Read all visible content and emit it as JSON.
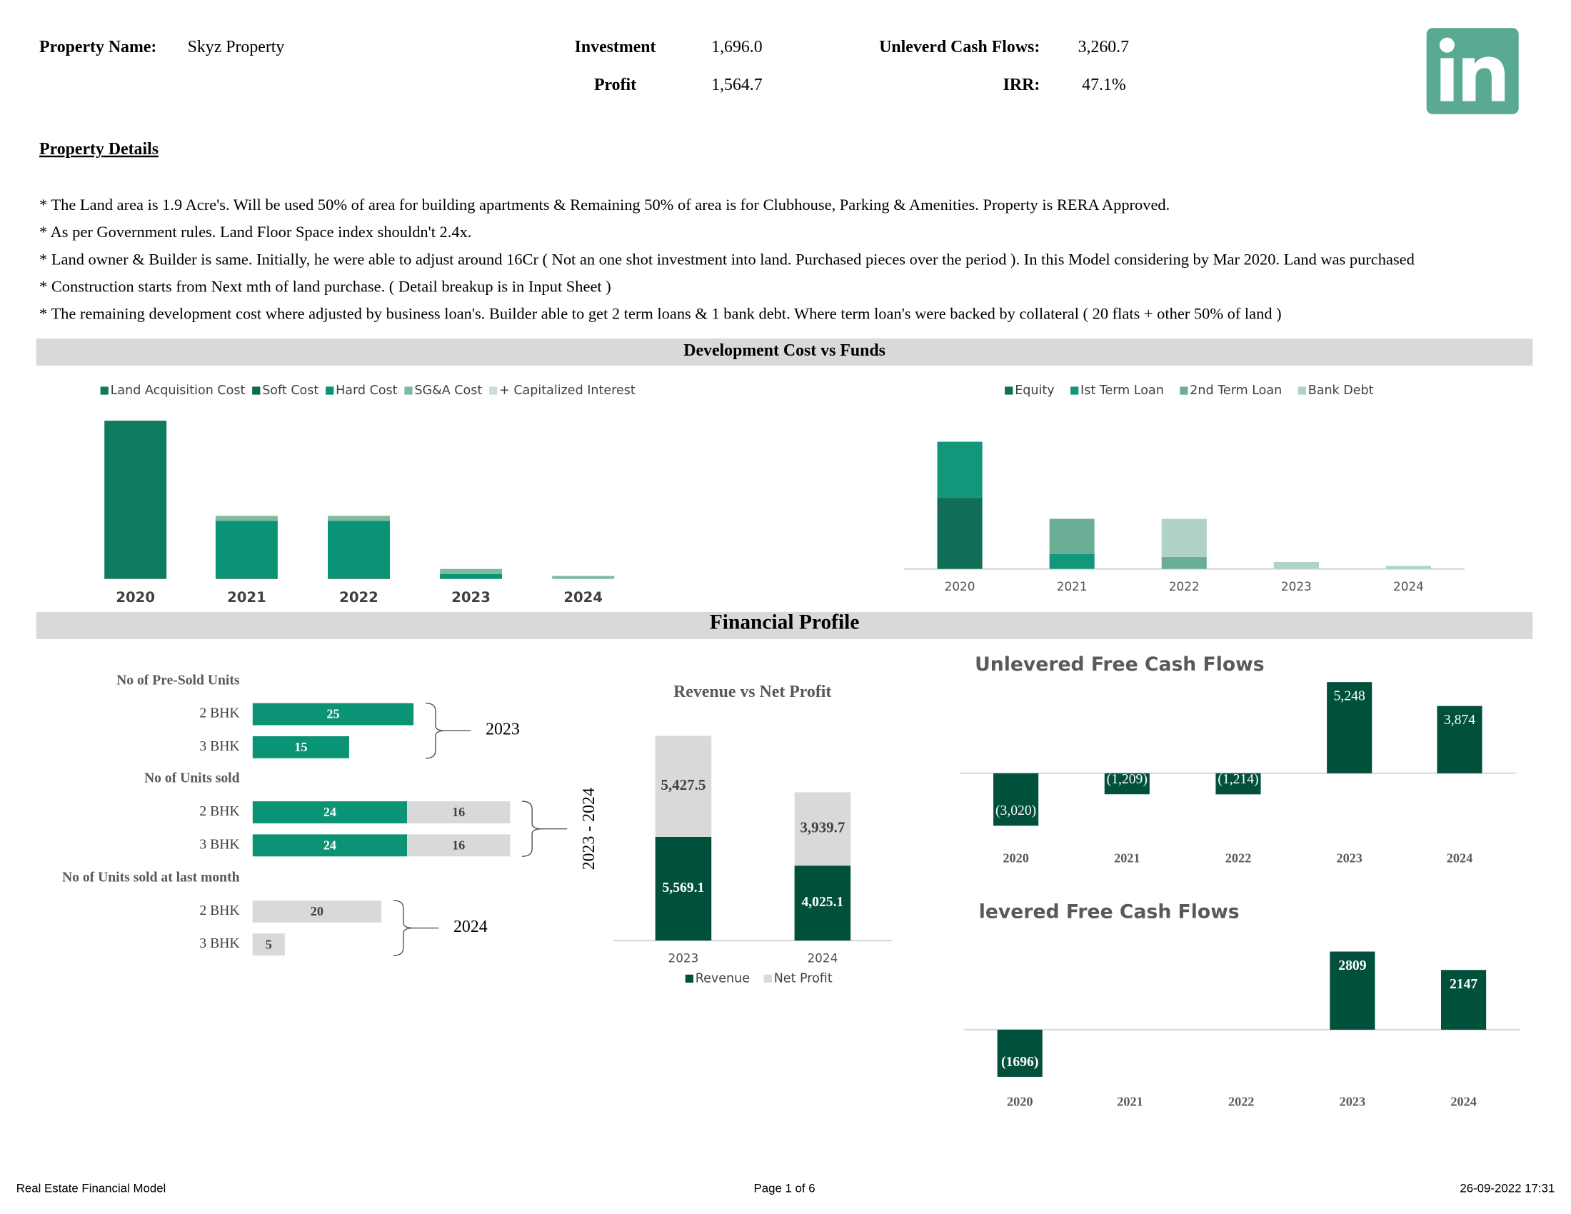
{
  "header": {
    "property_name_label": "Property Name:",
    "property_name": "Skyz Property",
    "investment_label": "Investment",
    "investment": "1,696.0",
    "profit_label": "Profit",
    "profit": "1,564.7",
    "cash_flows_label": "Unleverd Cash Flows:",
    "cash_flows": "3,260.7",
    "irr_label": "IRR:",
    "irr": "47.1%"
  },
  "details": {
    "title": "Property Details",
    "bullets": [
      "* The Land area is 1.9 Acre's. Will be used 50% of area for building apartments & Remaining 50% of area is for Clubhouse, Parking & Amenities. Property is RERA Approved.",
      "* As per Government rules. Land Floor Space index shouldn't 2.4x.",
      "* Land owner & Builder is same. Initially, he were able to adjust around 16Cr ( Not an one shot investment into land. Purchased pieces over the period ). In this Model considering by Mar 2020. Land was purchased",
      "* Construction starts from Next mth of land purchase. ( Detail breakup is in Input Sheet )",
      "* The remaining development cost where adjusted by business loan's. Builder able to get 2 term loans & 1 bank debt. Where term loan's were backed by collateral ( 20 flats + other 50% of land )"
    ]
  },
  "sections": [
    "Development Cost vs Funds",
    "Financial Profile"
  ],
  "chart_data": [
    {
      "type": "bar",
      "stacked": true,
      "legend": "top",
      "categories": [
        "2020",
        "2021",
        "2022",
        "2023",
        "2024"
      ],
      "ylim": [
        0,
        1600
      ],
      "series": [
        {
          "name": "Land Acquisition Cost",
          "color": "#0e7a5e",
          "values": [
            1580,
            0,
            0,
            0,
            0
          ]
        },
        {
          "name": "Soft Cost",
          "color": "#0b6b52",
          "values": [
            0,
            10,
            10,
            0,
            0
          ]
        },
        {
          "name": "Hard Cost",
          "color": "#0a9374",
          "values": [
            0,
            570,
            570,
            50,
            0
          ]
        },
        {
          "name": "SG&A Cost",
          "color": "#7fb9a2",
          "values": [
            0,
            50,
            50,
            50,
            30
          ]
        },
        {
          "name": "+ Capitalized Interest",
          "color": "#c9dfd6",
          "values": [
            0,
            0,
            0,
            0,
            0
          ]
        }
      ]
    },
    {
      "type": "bar",
      "stacked": true,
      "legend": "top",
      "categories": [
        "2020",
        "2021",
        "2022",
        "2023",
        "2024"
      ],
      "ylim": [
        0,
        1400
      ],
      "series": [
        {
          "name": "Equity",
          "color": "#0f6e55",
          "values": [
            710,
            0,
            0,
            0,
            0
          ]
        },
        {
          "name": "Ist Term Loan",
          "color": "#13977a",
          "values": [
            560,
            150,
            0,
            0,
            0
          ]
        },
        {
          "name": "2nd Term Loan",
          "color": "#6aaf95",
          "values": [
            0,
            350,
            120,
            0,
            0
          ]
        },
        {
          "name": "Bank Debt",
          "color": "#b0d3c6",
          "values": [
            0,
            0,
            380,
            70,
            30
          ]
        }
      ]
    },
    {
      "type": "hbar",
      "stacked": true,
      "xlim": [
        0,
        40
      ],
      "groups": [
        {
          "label": "No of Pre-Sold Units",
          "period": "2023",
          "colors": [
            "#0a9374"
          ],
          "rows": [
            {
              "label": "2 BHK",
              "values": [
                25
              ]
            },
            {
              "label": "3 BHK",
              "values": [
                15
              ]
            }
          ]
        },
        {
          "label": "No of Units sold",
          "period": "2023 - 2024",
          "colors": [
            "#0a9374",
            "#d9d9d9"
          ],
          "rows": [
            {
              "label": "2 BHK",
              "values": [
                24,
                16
              ]
            },
            {
              "label": "3 BHK",
              "values": [
                24,
                16
              ]
            }
          ]
        },
        {
          "label": "No of Units sold at last month",
          "period": "2024",
          "colors": [
            "#d9d9d9"
          ],
          "rows": [
            {
              "label": "2 BHK",
              "values": [
                20
              ]
            },
            {
              "label": "3 BHK",
              "values": [
                5
              ]
            }
          ]
        }
      ]
    },
    {
      "type": "bar",
      "stacked": true,
      "legend": "bottom",
      "title": "Revenue vs Net Profit",
      "categories": [
        "2023",
        "2024"
      ],
      "ylim": [
        0,
        12000
      ],
      "series": [
        {
          "name": "Revenue",
          "color": "#00503c",
          "values": [
            5569.1,
            4025.1
          ],
          "value_labels": [
            "5,569.1",
            "4,025.1"
          ]
        },
        {
          "name": "Net Profit",
          "color": "#d9d9d9",
          "values": [
            5427.5,
            3939.7
          ],
          "value_labels": [
            "5,427.5",
            "3,939.7"
          ]
        }
      ]
    },
    {
      "type": "bar",
      "title": "Unlevered Free Cash Flows",
      "categories": [
        "2020",
        "2021",
        "2022",
        "2023",
        "2024"
      ],
      "ylim": [
        -3500,
        5500
      ],
      "color": "#00503c",
      "values": [
        -3020,
        -1209,
        -1214,
        5248,
        3874
      ],
      "value_labels": [
        "(3,020)",
        "(1,209)",
        "(1,214)",
        "5,248",
        "3,874"
      ]
    },
    {
      "type": "bar",
      "title": "levered Free Cash Flows",
      "categories": [
        "2020",
        "2021",
        "2022",
        "2023",
        "2024"
      ],
      "ylim": [
        -2000,
        3000
      ],
      "color": "#00503c",
      "values": [
        -1696,
        0,
        0,
        2809,
        2147
      ],
      "value_labels": [
        "(1696)",
        null,
        null,
        "2809",
        "2147"
      ]
    }
  ],
  "footer": {
    "left": "Real Estate Financial Model",
    "center": "Page 1 of 6",
    "right": "26-09-2022  17:31"
  }
}
